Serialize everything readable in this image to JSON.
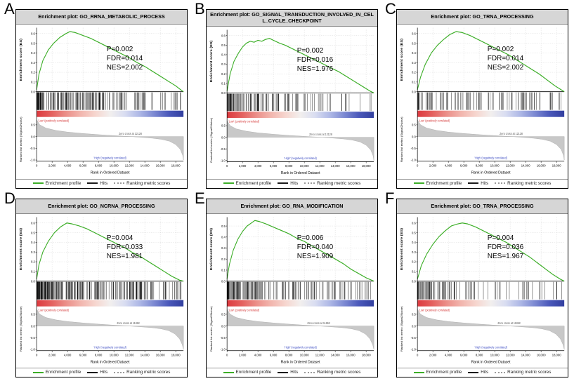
{
  "figure": {
    "legend": [
      {
        "label": "Enrichment profile",
        "color": "#3cae27",
        "style": "solid"
      },
      {
        "label": "Hits",
        "color": "#1a1a1a",
        "style": "solid"
      },
      {
        "label": "Ranking metric scores",
        "color": "#9a9a9a",
        "style": "dotted"
      }
    ],
    "axis": {
      "x_label": "Rank in Ordered Dataset",
      "x_tick_values": [
        0,
        2000,
        4000,
        6000,
        8000,
        10000,
        12000,
        14000,
        16000,
        18000
      ],
      "x_tick_labels": [
        "0",
        "2,000",
        "4,000",
        "6,000",
        "8,000",
        "10,000",
        "12,000",
        "14,000",
        "16,000",
        "18,000"
      ],
      "es_ylabel": "Enrichment score (ES)",
      "metric_ylabel": "Ranked list metric (Signal2Noise)"
    },
    "annotations": {
      "pos_label": "'Low' (positively correlated)",
      "neg_label": "'High' (negatively correlated)"
    },
    "colors": {
      "enrichment_line": "#3cae27",
      "hits": "#111111",
      "metric_fill": "#c8c8c8",
      "metric_stroke": "#a8a8a8",
      "grid": "#cfcfcf",
      "pos_text": "#d43333",
      "neg_text": "#3a4ac2",
      "gradient": [
        "#dc3a3f",
        "#e4605e",
        "#eb8f89",
        "#f2b6ae",
        "#f6d6cf",
        "#f2efee",
        "#d9ddf1",
        "#aeb8e6",
        "#7c89d2",
        "#4a58ba",
        "#323f9f"
      ]
    }
  },
  "chart_data": [
    {
      "panel": "A",
      "type": "line",
      "title": "Enrichment plot: GO_RRNA_METABOLIC_PROCESS",
      "stats": {
        "p": "P=0.002",
        "fdr": "FDR=0.014",
        "nes": "NES=2.002"
      },
      "x_max": 19000,
      "es_ylim": [
        0,
        0.66
      ],
      "es_yticks": [
        0.0,
        0.1,
        0.2,
        0.3,
        0.4,
        0.5,
        0.6
      ],
      "metric_ylim": [
        -1.05,
        0.8
      ],
      "metric_yticks": [
        0.5,
        0.0,
        -0.5,
        -1.0
      ],
      "zero_cross_label": "Zero cross at 12128",
      "zero_cross_rank": 12128,
      "hits": {
        "count": 190,
        "seed": 11,
        "bias": 1.8
      },
      "es_points": [
        [
          0,
          0.02
        ],
        [
          300,
          0.18
        ],
        [
          800,
          0.32
        ],
        [
          1500,
          0.43
        ],
        [
          2200,
          0.5
        ],
        [
          3000,
          0.56
        ],
        [
          3800,
          0.6
        ],
        [
          4300,
          0.62
        ],
        [
          5000,
          0.61
        ],
        [
          6000,
          0.58
        ],
        [
          7000,
          0.55
        ],
        [
          8000,
          0.51
        ],
        [
          9000,
          0.47
        ],
        [
          10000,
          0.43
        ],
        [
          11000,
          0.39
        ],
        [
          12000,
          0.35
        ],
        [
          13000,
          0.3
        ],
        [
          14000,
          0.26
        ],
        [
          15000,
          0.21
        ],
        [
          16000,
          0.16
        ],
        [
          17000,
          0.11
        ],
        [
          18000,
          0.06
        ],
        [
          18800,
          0.01
        ],
        [
          19000,
          0.0
        ]
      ],
      "metric_points": [
        [
          0,
          0.72
        ],
        [
          400,
          0.5
        ],
        [
          1200,
          0.36
        ],
        [
          2500,
          0.26
        ],
        [
          4000,
          0.19
        ],
        [
          6000,
          0.13
        ],
        [
          8000,
          0.08
        ],
        [
          10000,
          0.04
        ],
        [
          11000,
          0.02
        ],
        [
          12128,
          0
        ],
        [
          13500,
          -0.03
        ],
        [
          15000,
          -0.07
        ],
        [
          16200,
          -0.12
        ],
        [
          17200,
          -0.2
        ],
        [
          18000,
          -0.34
        ],
        [
          18600,
          -0.55
        ],
        [
          18900,
          -0.8
        ],
        [
          19000,
          -1.0
        ]
      ]
    },
    {
      "panel": "B",
      "type": "line",
      "title": "Enrichment plot: GO_SIGNAL_TRANSDUCTION_INVOLVED_IN_CELL_CYCLE_CHECKPOINT",
      "stats": {
        "p": "P=0.002",
        "fdr": "FDR=0.016",
        "nes": "NES=1.976"
      },
      "x_max": 19000,
      "es_ylim": [
        0,
        0.66
      ],
      "es_yticks": [
        0.0,
        0.1,
        0.2,
        0.3,
        0.4,
        0.5,
        0.6
      ],
      "metric_ylim": [
        -1.05,
        0.8
      ],
      "metric_yticks": [
        0.5,
        0.0,
        -0.5,
        -1.0
      ],
      "zero_cross_label": "Zero cross at 12128",
      "zero_cross_rank": 12128,
      "hits": {
        "count": 130,
        "seed": 22,
        "bias": 1.8
      },
      "es_points": [
        [
          0,
          0.02
        ],
        [
          400,
          0.2
        ],
        [
          900,
          0.33
        ],
        [
          1500,
          0.42
        ],
        [
          2000,
          0.48
        ],
        [
          2500,
          0.52
        ],
        [
          3000,
          0.54
        ],
        [
          3500,
          0.53
        ],
        [
          4000,
          0.55
        ],
        [
          4500,
          0.54
        ],
        [
          5000,
          0.56
        ],
        [
          5500,
          0.57
        ],
        [
          6000,
          0.55
        ],
        [
          6800,
          0.52
        ],
        [
          7500,
          0.5
        ],
        [
          8500,
          0.46
        ],
        [
          9500,
          0.42
        ],
        [
          10500,
          0.38
        ],
        [
          11500,
          0.34
        ],
        [
          12500,
          0.3
        ],
        [
          13500,
          0.26
        ],
        [
          14500,
          0.22
        ],
        [
          15500,
          0.17
        ],
        [
          16500,
          0.12
        ],
        [
          17500,
          0.07
        ],
        [
          18500,
          0.02
        ],
        [
          19000,
          0.0
        ]
      ],
      "metric_points": [
        [
          0,
          0.72
        ],
        [
          400,
          0.5
        ],
        [
          1200,
          0.36
        ],
        [
          2500,
          0.26
        ],
        [
          4000,
          0.19
        ],
        [
          6000,
          0.13
        ],
        [
          8000,
          0.08
        ],
        [
          10000,
          0.04
        ],
        [
          11000,
          0.02
        ],
        [
          12128,
          0
        ],
        [
          13500,
          -0.03
        ],
        [
          15000,
          -0.07
        ],
        [
          16200,
          -0.12
        ],
        [
          17200,
          -0.2
        ],
        [
          18000,
          -0.34
        ],
        [
          18600,
          -0.55
        ],
        [
          18900,
          -0.8
        ],
        [
          19000,
          -1.0
        ]
      ]
    },
    {
      "panel": "C",
      "type": "line",
      "title": "Enrichment plot: GO_TRNA_PROCESSING",
      "stats": {
        "p": "P=0.002",
        "fdr": "FDR=0.014",
        "nes": "NES=2.002"
      },
      "x_max": 19000,
      "es_ylim": [
        0,
        0.66
      ],
      "es_yticks": [
        0.0,
        0.1,
        0.2,
        0.3,
        0.4,
        0.5,
        0.6
      ],
      "metric_ylim": [
        -1.05,
        0.8
      ],
      "metric_yticks": [
        0.5,
        0.0,
        -0.5,
        -1.0
      ],
      "zero_cross_label": "Zero cross at 12128",
      "zero_cross_rank": 12128,
      "hits": {
        "count": 105,
        "seed": 33,
        "bias": 1.8
      },
      "es_points": [
        [
          0,
          0.02
        ],
        [
          400,
          0.15
        ],
        [
          1000,
          0.28
        ],
        [
          1800,
          0.4
        ],
        [
          2600,
          0.48
        ],
        [
          3400,
          0.54
        ],
        [
          4200,
          0.59
        ],
        [
          5000,
          0.62
        ],
        [
          5800,
          0.61
        ],
        [
          6800,
          0.58
        ],
        [
          7800,
          0.54
        ],
        [
          8800,
          0.5
        ],
        [
          9800,
          0.46
        ],
        [
          10800,
          0.42
        ],
        [
          11800,
          0.38
        ],
        [
          12800,
          0.33
        ],
        [
          13800,
          0.28
        ],
        [
          14800,
          0.23
        ],
        [
          15800,
          0.18
        ],
        [
          16800,
          0.12
        ],
        [
          17800,
          0.06
        ],
        [
          18800,
          0.01
        ],
        [
          19000,
          0.0
        ]
      ],
      "metric_points": [
        [
          0,
          0.72
        ],
        [
          400,
          0.5
        ],
        [
          1200,
          0.36
        ],
        [
          2500,
          0.26
        ],
        [
          4000,
          0.19
        ],
        [
          6000,
          0.13
        ],
        [
          8000,
          0.08
        ],
        [
          10000,
          0.04
        ],
        [
          11000,
          0.02
        ],
        [
          12128,
          0
        ],
        [
          13500,
          -0.03
        ],
        [
          15000,
          -0.07
        ],
        [
          16200,
          -0.12
        ],
        [
          17200,
          -0.2
        ],
        [
          18000,
          -0.34
        ],
        [
          18600,
          -0.55
        ],
        [
          18900,
          -0.8
        ],
        [
          19000,
          -1.0
        ]
      ]
    },
    {
      "panel": "D",
      "type": "line",
      "title": "Enrichment plot: GO_NCRNA_PROCESSING",
      "stats": {
        "p": "P=0.004",
        "fdr": "FDR=0.033",
        "nes": "NES=1.981"
      },
      "x_max": 19000,
      "es_ylim": [
        0,
        0.66
      ],
      "es_yticks": [
        0.0,
        0.1,
        0.2,
        0.3,
        0.4,
        0.5,
        0.6
      ],
      "metric_ylim": [
        -1.05,
        0.8
      ],
      "metric_yticks": [
        0.5,
        0.0,
        -0.5,
        -1.0
      ],
      "zero_cross_label": "Zero cross at 11862",
      "zero_cross_rank": 11862,
      "hits": {
        "count": 260,
        "seed": 44,
        "bias": 1.8
      },
      "es_points": [
        [
          0,
          0.02
        ],
        [
          300,
          0.17
        ],
        [
          800,
          0.3
        ],
        [
          1500,
          0.41
        ],
        [
          2300,
          0.5
        ],
        [
          3100,
          0.56
        ],
        [
          3900,
          0.6
        ],
        [
          4600,
          0.59
        ],
        [
          5500,
          0.57
        ],
        [
          6500,
          0.54
        ],
        [
          7500,
          0.5
        ],
        [
          8500,
          0.46
        ],
        [
          9500,
          0.42
        ],
        [
          10500,
          0.38
        ],
        [
          11500,
          0.34
        ],
        [
          12500,
          0.29
        ],
        [
          13500,
          0.25
        ],
        [
          14500,
          0.2
        ],
        [
          15500,
          0.15
        ],
        [
          16500,
          0.1
        ],
        [
          17500,
          0.05
        ],
        [
          18500,
          0.01
        ],
        [
          19000,
          0.0
        ]
      ],
      "metric_points": [
        [
          0,
          0.72
        ],
        [
          400,
          0.5
        ],
        [
          1200,
          0.36
        ],
        [
          2500,
          0.26
        ],
        [
          4000,
          0.19
        ],
        [
          6000,
          0.13
        ],
        [
          8000,
          0.08
        ],
        [
          9800,
          0.04
        ],
        [
          10800,
          0.02
        ],
        [
          11862,
          0
        ],
        [
          13300,
          -0.03
        ],
        [
          14900,
          -0.07
        ],
        [
          16100,
          -0.12
        ],
        [
          17100,
          -0.2
        ],
        [
          17900,
          -0.34
        ],
        [
          18500,
          -0.55
        ],
        [
          18850,
          -0.8
        ],
        [
          19000,
          -1.0
        ]
      ]
    },
    {
      "panel": "E",
      "type": "line",
      "title": "Enrichment plot: GO_RNA_MODIFICATION",
      "stats": {
        "p": "P=0.006",
        "fdr": "FDR=0.040",
        "nes": "NES=1.909"
      },
      "x_max": 19000,
      "es_ylim": [
        0,
        0.58
      ],
      "es_yticks": [
        0.0,
        0.1,
        0.2,
        0.3,
        0.4,
        0.5
      ],
      "metric_ylim": [
        -1.05,
        0.8
      ],
      "metric_yticks": [
        0.5,
        0.0,
        -0.5,
        -1.0
      ],
      "zero_cross_label": "Zero cross at 11862",
      "zero_cross_rank": 11862,
      "hits": {
        "count": 170,
        "seed": 55,
        "bias": 1.8
      },
      "es_points": [
        [
          0,
          0.02
        ],
        [
          300,
          0.15
        ],
        [
          800,
          0.28
        ],
        [
          1400,
          0.38
        ],
        [
          2000,
          0.45
        ],
        [
          2600,
          0.5
        ],
        [
          3200,
          0.53
        ],
        [
          3600,
          0.55
        ],
        [
          4200,
          0.54
        ],
        [
          5000,
          0.52
        ],
        [
          6000,
          0.49
        ],
        [
          7000,
          0.46
        ],
        [
          8000,
          0.43
        ],
        [
          9000,
          0.39
        ],
        [
          10000,
          0.36
        ],
        [
          11000,
          0.32
        ],
        [
          12000,
          0.28
        ],
        [
          13000,
          0.24
        ],
        [
          14000,
          0.2
        ],
        [
          15000,
          0.16
        ],
        [
          16000,
          0.11
        ],
        [
          17000,
          0.07
        ],
        [
          18000,
          0.03
        ],
        [
          19000,
          0.0
        ]
      ],
      "metric_points": [
        [
          0,
          0.72
        ],
        [
          400,
          0.5
        ],
        [
          1200,
          0.36
        ],
        [
          2500,
          0.26
        ],
        [
          4000,
          0.19
        ],
        [
          6000,
          0.13
        ],
        [
          8000,
          0.08
        ],
        [
          9800,
          0.04
        ],
        [
          10800,
          0.02
        ],
        [
          11862,
          0
        ],
        [
          13300,
          -0.03
        ],
        [
          14900,
          -0.07
        ],
        [
          16100,
          -0.12
        ],
        [
          17100,
          -0.2
        ],
        [
          17900,
          -0.34
        ],
        [
          18500,
          -0.55
        ],
        [
          18850,
          -0.8
        ],
        [
          19000,
          -1.0
        ]
      ]
    },
    {
      "panel": "F",
      "type": "line",
      "title": "Enrichment plot: GO_TRNA_PROCESSING",
      "stats": {
        "p": "P=0.004",
        "fdr": "FDR=0.036",
        "nes": "NES=1.967"
      },
      "x_max": 19000,
      "es_ylim": [
        0,
        0.66
      ],
      "es_yticks": [
        0.0,
        0.1,
        0.2,
        0.3,
        0.4,
        0.5,
        0.6
      ],
      "metric_ylim": [
        -1.05,
        0.8
      ],
      "metric_yticks": [
        0.5,
        0.0,
        -0.5,
        -1.0
      ],
      "zero_cross_label": "Zero cross at 11862",
      "zero_cross_rank": 11862,
      "hits": {
        "count": 110,
        "seed": 66,
        "bias": 1.8
      },
      "es_points": [
        [
          0,
          0.02
        ],
        [
          500,
          0.16
        ],
        [
          1200,
          0.28
        ],
        [
          2000,
          0.38
        ],
        [
          2800,
          0.46
        ],
        [
          3600,
          0.52
        ],
        [
          4400,
          0.57
        ],
        [
          5200,
          0.59
        ],
        [
          5800,
          0.6
        ],
        [
          6500,
          0.59
        ],
        [
          7500,
          0.56
        ],
        [
          8500,
          0.52
        ],
        [
          9500,
          0.48
        ],
        [
          10500,
          0.44
        ],
        [
          11500,
          0.4
        ],
        [
          12500,
          0.35
        ],
        [
          13500,
          0.3
        ],
        [
          14500,
          0.25
        ],
        [
          15500,
          0.19
        ],
        [
          16500,
          0.13
        ],
        [
          17500,
          0.07
        ],
        [
          18500,
          0.02
        ],
        [
          19000,
          0.0
        ]
      ],
      "metric_points": [
        [
          0,
          0.72
        ],
        [
          400,
          0.5
        ],
        [
          1200,
          0.36
        ],
        [
          2500,
          0.26
        ],
        [
          4000,
          0.19
        ],
        [
          6000,
          0.13
        ],
        [
          8000,
          0.08
        ],
        [
          9800,
          0.04
        ],
        [
          10800,
          0.02
        ],
        [
          11862,
          0
        ],
        [
          13300,
          -0.03
        ],
        [
          14900,
          -0.07
        ],
        [
          16100,
          -0.12
        ],
        [
          17100,
          -0.2
        ],
        [
          17900,
          -0.34
        ],
        [
          18500,
          -0.55
        ],
        [
          18850,
          -0.8
        ],
        [
          19000,
          -1.0
        ]
      ]
    }
  ]
}
